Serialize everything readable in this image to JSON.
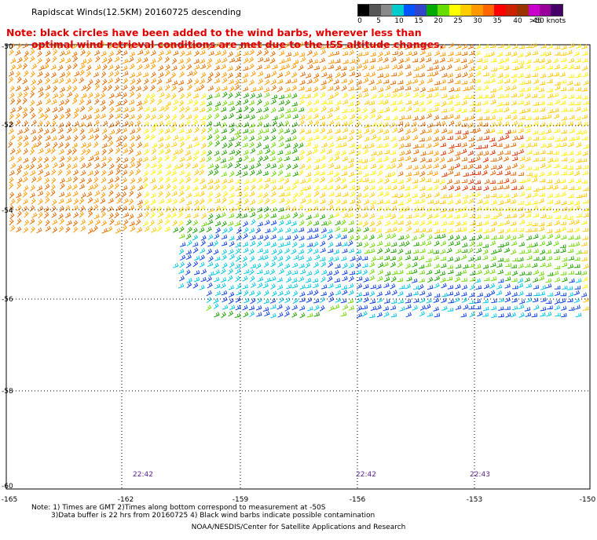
{
  "title": "Rapidscat Winds(12.5KM) 20160725 descending",
  "note": {
    "line1": "Note: black circles have been added to the wind barbs, wherever less than",
    "line2": "optimal wind retrieval conditions are met due to the ISS altitude changes."
  },
  "legend": {
    "colors": [
      "#000000",
      "#555555",
      "#8a8a8a",
      "#00cccc",
      "#0055ff",
      "#3344cc",
      "#00aa00",
      "#66dd00",
      "#ffff00",
      "#ffcc00",
      "#ff9900",
      "#ff6600",
      "#ff0000",
      "#cc2200",
      "#993300",
      "#cc00cc",
      "#990099",
      "#440066"
    ],
    "labels": [
      "0",
      "5",
      "10",
      "15",
      "20",
      "25",
      "30",
      "35",
      "40",
      "45",
      ">50 knots"
    ]
  },
  "lat_labels": [
    "-50",
    "-52",
    "-54",
    "-56",
    "-58",
    "-60"
  ],
  "lon_labels": [
    "-165",
    "-162",
    "-159",
    "-156",
    "-153",
    "-150"
  ],
  "times": [
    "22:42",
    "22:42",
    "22:43"
  ],
  "footer": {
    "line1": "Note: 1) Times are GMT 2)Times along bottom correspond to measurement at -50S",
    "line2": "3)Data buffer is 22 hrs from 20160725 4) Black wind barbs indicate possible contamination",
    "credit": "NOAA/NESDIS/Center for Satellite Applications and Research"
  }
}
